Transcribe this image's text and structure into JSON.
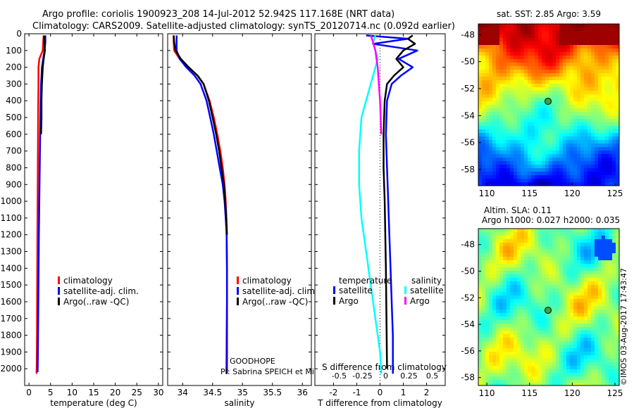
{
  "header": {
    "title_line1": "Argo profile: coriolis 1900923_208 14-Jul-2012 52.942S 117.168E (NRT data)",
    "title_line2": "Climatology: CARS2009. Satellite-adjusted climatology: synTS_20120714.nc (0.092d earlier)"
  },
  "colors": {
    "climatology": "#ff0000",
    "satellite": "#0000ff",
    "argo": "#000000",
    "salinity_satellite": "#00ffff",
    "salinity_argo": "#ff00ff"
  },
  "chart_data": [
    {
      "type": "line",
      "name": "temperature-profile",
      "xlabel": "temperature (deg C)",
      "xlim": [
        -1,
        31
      ],
      "ylim": [
        2100,
        0
      ],
      "y_reversed": true,
      "xticks": [
        0,
        5,
        10,
        15,
        20,
        25,
        30
      ],
      "yticks": [
        0,
        100,
        200,
        300,
        400,
        500,
        600,
        700,
        800,
        900,
        1000,
        1100,
        1200,
        1300,
        1400,
        1500,
        1600,
        1700,
        1800,
        1900,
        2000
      ],
      "legend": [
        "climatology",
        "satellite-adj. clim.",
        "Argo(..raw -QC)"
      ],
      "series": [
        {
          "name": "climatology",
          "color_key": "climatology",
          "x": [
            3.4,
            3.3,
            3.2,
            2.4,
            2.2,
            2.2,
            2.15,
            2.1,
            2.05,
            2.0,
            1.95,
            1.9,
            1.85,
            1.8,
            1.75
          ],
          "y": [
            10,
            50,
            100,
            150,
            200,
            300,
            400,
            600,
            800,
            1000,
            1200,
            1500,
            1800,
            2000,
            2030
          ]
        },
        {
          "name": "satellite-adj. clim.",
          "color_key": "satellite",
          "x": [
            3.8,
            3.8,
            3.6,
            3.3,
            3.0,
            2.8,
            2.7,
            2.6,
            2.5,
            2.4,
            2.3,
            2.2,
            2.1,
            2.05,
            2.0
          ],
          "y": [
            10,
            50,
            100,
            150,
            200,
            300,
            400,
            600,
            800,
            1000,
            1200,
            1500,
            1800,
            1950,
            2020
          ]
        },
        {
          "name": "Argo(..raw -QC)",
          "color_key": "argo",
          "x": [
            3.5,
            3.6,
            3.7,
            3.4,
            3.2,
            3.0,
            2.9,
            2.9,
            2.8
          ],
          "y": [
            10,
            60,
            100,
            150,
            200,
            300,
            400,
            500,
            600
          ]
        }
      ]
    },
    {
      "type": "line",
      "name": "salinity-profile",
      "xlabel": "salinity",
      "xlim": [
        33.75,
        36.15
      ],
      "ylim": [
        2100,
        0
      ],
      "y_reversed": true,
      "xticks": [
        34,
        34.5,
        35,
        35.5,
        36
      ],
      "legend": [
        "climatology",
        "satellite-adj. clim.",
        "Argo(..raw -QC)"
      ],
      "annotations": [
        "GOODHOPE",
        "PI: Sabrina SPEICH et Michel ARHAN"
      ],
      "series": [
        {
          "name": "climatology",
          "color_key": "climatology",
          "x": [
            33.85,
            33.85,
            33.86,
            33.95,
            34.1,
            34.25,
            34.35,
            34.45,
            34.52,
            34.58,
            34.63,
            34.67,
            34.7,
            34.72,
            34.73,
            34.735,
            34.74,
            34.74,
            34.735,
            34.73
          ],
          "y": [
            10,
            50,
            100,
            150,
            200,
            250,
            300,
            400,
            500,
            600,
            700,
            800,
            900,
            1000,
            1100,
            1200,
            1400,
            1600,
            1800,
            2030
          ]
        },
        {
          "name": "satellite-adj. clim.",
          "color_key": "satellite",
          "x": [
            33.9,
            33.9,
            33.9,
            33.95,
            34.06,
            34.2,
            34.3,
            34.4,
            34.46,
            34.52,
            34.57,
            34.62,
            34.67,
            34.7,
            34.72,
            34.735,
            34.74,
            34.74,
            34.74,
            34.74
          ],
          "y": [
            10,
            50,
            100,
            150,
            200,
            250,
            300,
            400,
            500,
            600,
            700,
            800,
            900,
            1000,
            1100,
            1200,
            1400,
            1600,
            1800,
            2030
          ]
        },
        {
          "name": "Argo(..raw -QC)",
          "color_key": "argo",
          "x": [
            33.85,
            33.86,
            33.88,
            33.97,
            34.1,
            34.25,
            34.35,
            34.44,
            34.5,
            34.56,
            34.61,
            34.65,
            34.69,
            34.71,
            34.73,
            34.74
          ],
          "y": [
            10,
            50,
            100,
            150,
            200,
            250,
            300,
            400,
            500,
            600,
            700,
            800,
            900,
            1000,
            1100,
            1200
          ]
        }
      ]
    },
    {
      "type": "line",
      "name": "difference-profile",
      "xlabel": "T difference from climatology",
      "xlabel2": "S difference from climatology",
      "xlim": [
        -2.8,
        2.8
      ],
      "ylim": [
        2100,
        0
      ],
      "y_reversed": true,
      "xticks": [
        -2,
        -1,
        0,
        1,
        2
      ],
      "xticks2": [
        "-0.5",
        "-0.25",
        "0",
        "0.25",
        "0.5"
      ],
      "legend_groups": [
        "temperature",
        "salinity"
      ],
      "legend": [
        "satellite",
        "Argo",
        "satellite",
        "Argo"
      ],
      "series": [
        {
          "name": "satellite",
          "group": "temperature",
          "color_key": "satellite",
          "x": [
            -0.6,
            1.2,
            -0.3,
            1.6,
            0.8,
            1.4,
            0.9,
            0.5,
            0.3,
            0.25,
            0.3,
            0.35,
            0.4,
            0.45,
            0.5,
            0.55,
            0.55
          ],
          "y": [
            10,
            30,
            60,
            100,
            150,
            200,
            250,
            300,
            400,
            600,
            800,
            1000,
            1200,
            1400,
            1600,
            1800,
            2030
          ]
        },
        {
          "name": "Argo",
          "group": "temperature",
          "color_key": "argo",
          "x": [
            1.4,
            1.2,
            1.5,
            1.0,
            0.7,
            1.0,
            0.6,
            0.3,
            0.2,
            0.15,
            0.15,
            0.2,
            0.25,
            0.3
          ],
          "y": [
            10,
            30,
            60,
            100,
            150,
            200,
            250,
            300,
            400,
            600,
            800,
            1000,
            1400,
            2000
          ]
        },
        {
          "name": "satellite",
          "group": "salinity",
          "color_key": "salinity_satellite",
          "x": [
            -0.2,
            -0.3,
            -0.2,
            -0.1,
            -0.2,
            -0.4,
            -0.8,
            -0.9,
            -0.9,
            -0.8,
            -0.6,
            -0.4,
            -0.2,
            -0.1,
            0.0,
            0.05
          ],
          "y": [
            10,
            50,
            100,
            150,
            200,
            300,
            500,
            700,
            900,
            1100,
            1300,
            1500,
            1700,
            1800,
            1900,
            2030
          ]
        },
        {
          "name": "Argo",
          "group": "salinity",
          "color_key": "salinity_argo",
          "x": [
            -0.4,
            -0.3,
            -0.2,
            -0.15,
            -0.1,
            -0.05,
            0.0,
            0.05
          ],
          "y": [
            10,
            50,
            100,
            150,
            200,
            300,
            400,
            600
          ]
        }
      ]
    },
    {
      "type": "heatmap",
      "name": "sst-map",
      "title": "sat. SST: 2.85 Argo: 3.59",
      "xlim": [
        109,
        125.5
      ],
      "ylim": [
        -59.2,
        -47.2
      ],
      "xticks": [
        110,
        115,
        120,
        125
      ],
      "yticks": [
        -48,
        -50,
        -52,
        -54,
        -56,
        -58
      ],
      "marker": {
        "x": 117.168,
        "y": -52.942
      }
    },
    {
      "type": "heatmap",
      "name": "sla-map",
      "title": "Altim. SLA: 0.11",
      "subtitle": "Argo h1000: 0.027 h2000: 0.035",
      "xlim": [
        109,
        125.5
      ],
      "ylim": [
        -58.6,
        -46.8
      ],
      "xticks": [
        110,
        115,
        120,
        125
      ],
      "yticks": [
        -48,
        -50,
        -52,
        -54,
        -56,
        -58
      ],
      "marker": {
        "x": 117.168,
        "y": -52.942
      }
    }
  ],
  "footer": {
    "credit": "©IMOS 03-Aug-2017 17:43:47"
  }
}
